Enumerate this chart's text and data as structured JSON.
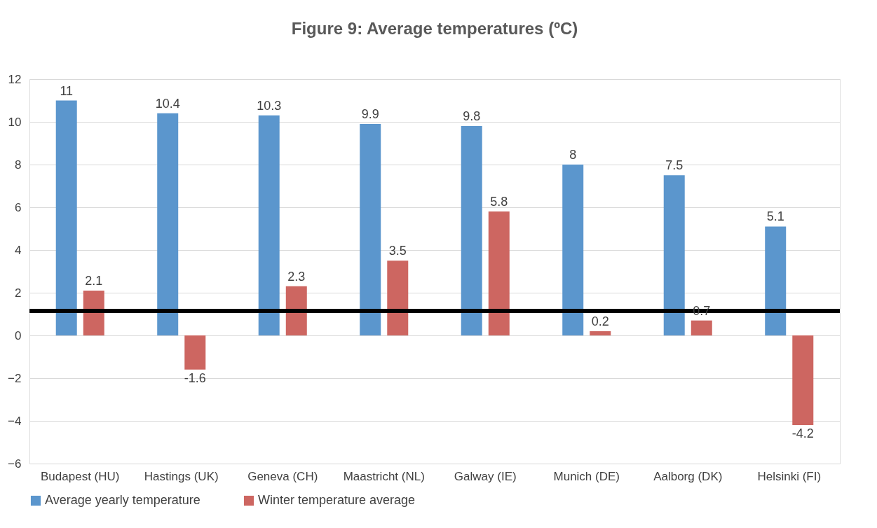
{
  "chart_data": {
    "type": "bar",
    "title": "Figure 9: Average temperatures (ºC)",
    "categories": [
      "Budapest (HU)",
      "Hastings (UK)",
      "Geneva (CH)",
      "Maastricht (NL)",
      "Galway (IE)",
      "Munich (DE)",
      "Aalborg (DK)",
      "Helsinki (FI)"
    ],
    "series": [
      {
        "name": "Average yearly temperature",
        "color": "#5b96cd",
        "values": [
          11,
          10.4,
          10.3,
          9.9,
          9.8,
          8,
          7.5,
          5.1
        ]
      },
      {
        "name": "Winter temperature average",
        "color": "#cd6661",
        "values": [
          2.1,
          -1.6,
          2.3,
          3.5,
          5.8,
          0.2,
          0.7,
          -4.2
        ]
      }
    ],
    "ylim": [
      -6,
      12
    ],
    "yticks": [
      -6,
      -4,
      -2,
      0,
      2,
      4,
      6,
      8,
      10,
      12
    ],
    "grid": "y",
    "legend": "bottom",
    "data_labels": true,
    "ref_lines": [
      {
        "axis": "y",
        "value": 1.15,
        "color": "#000000",
        "line_style": "solid"
      }
    ]
  }
}
